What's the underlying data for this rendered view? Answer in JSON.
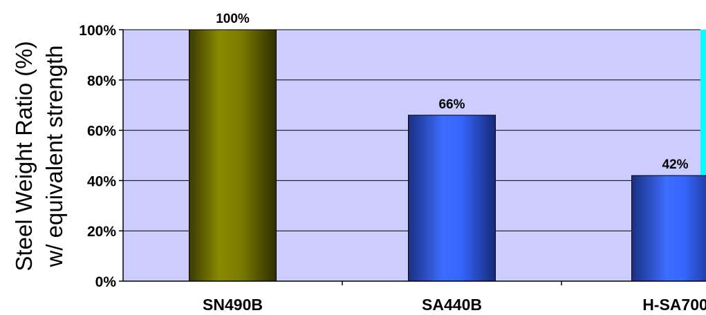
{
  "chart_data": {
    "type": "bar",
    "categories": [
      "SN490B",
      "SA440B",
      "H-SA700"
    ],
    "values": [
      100,
      66,
      42
    ],
    "data_labels": [
      "100%",
      "66%",
      "42%"
    ],
    "ylabel_lines": [
      "Steel Weight Ratio (%)",
      "w/ equivalent strength"
    ],
    "ylim": [
      0,
      100
    ],
    "yticks": [
      0,
      20,
      40,
      60,
      80,
      100
    ],
    "ytick_labels": [
      "0%",
      "20%",
      "40%",
      "60%",
      "80%",
      "100%"
    ],
    "grid": true,
    "legend": "none"
  },
  "colors": {
    "plot_background": "#ccccff",
    "gridline": "#000000",
    "bars": [
      "#808000",
      "#3366ff",
      "#3366ff"
    ],
    "right_strip": "#00ffff"
  }
}
